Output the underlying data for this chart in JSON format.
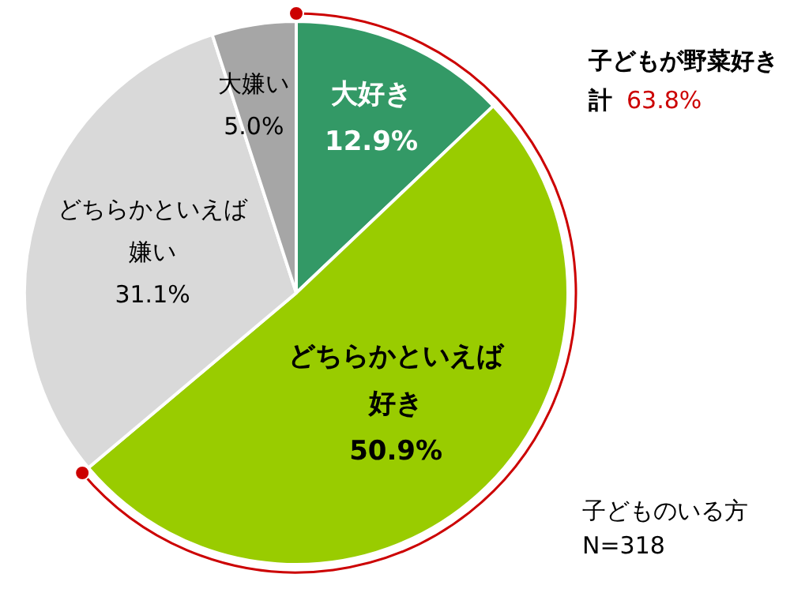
{
  "chart_data": {
    "type": "pie",
    "categories": [
      "大好き",
      "どちらかといえば好き",
      "どちらかといえば嫌い",
      "大嫌い"
    ],
    "value_labels": [
      "12.9%",
      "50.9%",
      "31.1%",
      "5.0%"
    ],
    "values": [
      12.9,
      50.9,
      31.1,
      5.0
    ],
    "colors": [
      "#339966",
      "#99cc00",
      "#d9d9d9",
      "#a6a6a6"
    ],
    "annotations": [
      "子どもが野菜好き",
      "計 63.8%",
      "子どものいる方",
      "N=318"
    ]
  }
}
